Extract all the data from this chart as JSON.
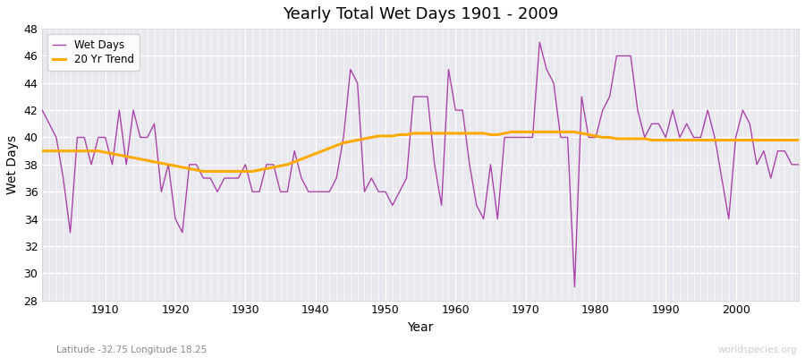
{
  "title": "Yearly Total Wet Days 1901 - 2009",
  "xlabel": "Year",
  "ylabel": "Wet Days",
  "lat_lon_label": "Latitude -32.75 Longitude 18.25",
  "watermark": "worldspecies.org",
  "ylim": [
    28,
    48
  ],
  "yticks": [
    28,
    30,
    32,
    34,
    36,
    38,
    40,
    42,
    44,
    46,
    48
  ],
  "xlim": [
    1901,
    2009
  ],
  "line_color": "#aa44aa",
  "trend_color": "#ffaa00",
  "plot_bg_color": "#e8e8ee",
  "fig_bg_color": "#ffffff",
  "wet_days": [
    42,
    41,
    40,
    37,
    33,
    40,
    40,
    38,
    40,
    40,
    38,
    42,
    38,
    42,
    40,
    40,
    41,
    36,
    38,
    34,
    33,
    38,
    38,
    37,
    37,
    36,
    37,
    37,
    37,
    38,
    36,
    36,
    38,
    38,
    36,
    36,
    39,
    37,
    36,
    36,
    36,
    36,
    37,
    40,
    45,
    44,
    36,
    37,
    36,
    36,
    35,
    36,
    37,
    43,
    43,
    43,
    38,
    35,
    45,
    42,
    42,
    38,
    35,
    34,
    38,
    34,
    40,
    40,
    40,
    40,
    40,
    47,
    45,
    44,
    40,
    40,
    29,
    43,
    40,
    40,
    42,
    43,
    46,
    46,
    46,
    42,
    40,
    41,
    41,
    40,
    42,
    40,
    41,
    40,
    40,
    42,
    40,
    37,
    34,
    40,
    42,
    41,
    38,
    39,
    37,
    39,
    39,
    38,
    38
  ],
  "trend_start_year": 1901,
  "trend_values": [
    39.0,
    39.0,
    39.0,
    39.0,
    39.0,
    39.0,
    39.0,
    39.0,
    39.0,
    38.9,
    38.8,
    38.7,
    38.6,
    38.5,
    38.4,
    38.3,
    38.2,
    38.1,
    38.0,
    37.9,
    37.8,
    37.7,
    37.6,
    37.5,
    37.5,
    37.5,
    37.5,
    37.5,
    37.5,
    37.5,
    37.5,
    37.6,
    37.7,
    37.8,
    37.9,
    38.0,
    38.2,
    38.4,
    38.6,
    38.8,
    39.0,
    39.2,
    39.4,
    39.6,
    39.7,
    39.8,
    39.9,
    40.0,
    40.1,
    40.1,
    40.1,
    40.2,
    40.2,
    40.3,
    40.3,
    40.3,
    40.3,
    40.3,
    40.3,
    40.3,
    40.3,
    40.3,
    40.3,
    40.3,
    40.2,
    40.2,
    40.3,
    40.4,
    40.4,
    40.4,
    40.4,
    40.4,
    40.4,
    40.4,
    40.4,
    40.4,
    40.4,
    40.3,
    40.2,
    40.1,
    40.0,
    40.0,
    39.9,
    39.9,
    39.9,
    39.9,
    39.9,
    39.8,
    39.8,
    39.8,
    39.8,
    39.8,
    39.8,
    39.8,
    39.8,
    39.8,
    39.8,
    39.8,
    39.8,
    39.8,
    39.8,
    39.8,
    39.8,
    39.8,
    39.8,
    39.8,
    39.8,
    39.8,
    39.8
  ]
}
